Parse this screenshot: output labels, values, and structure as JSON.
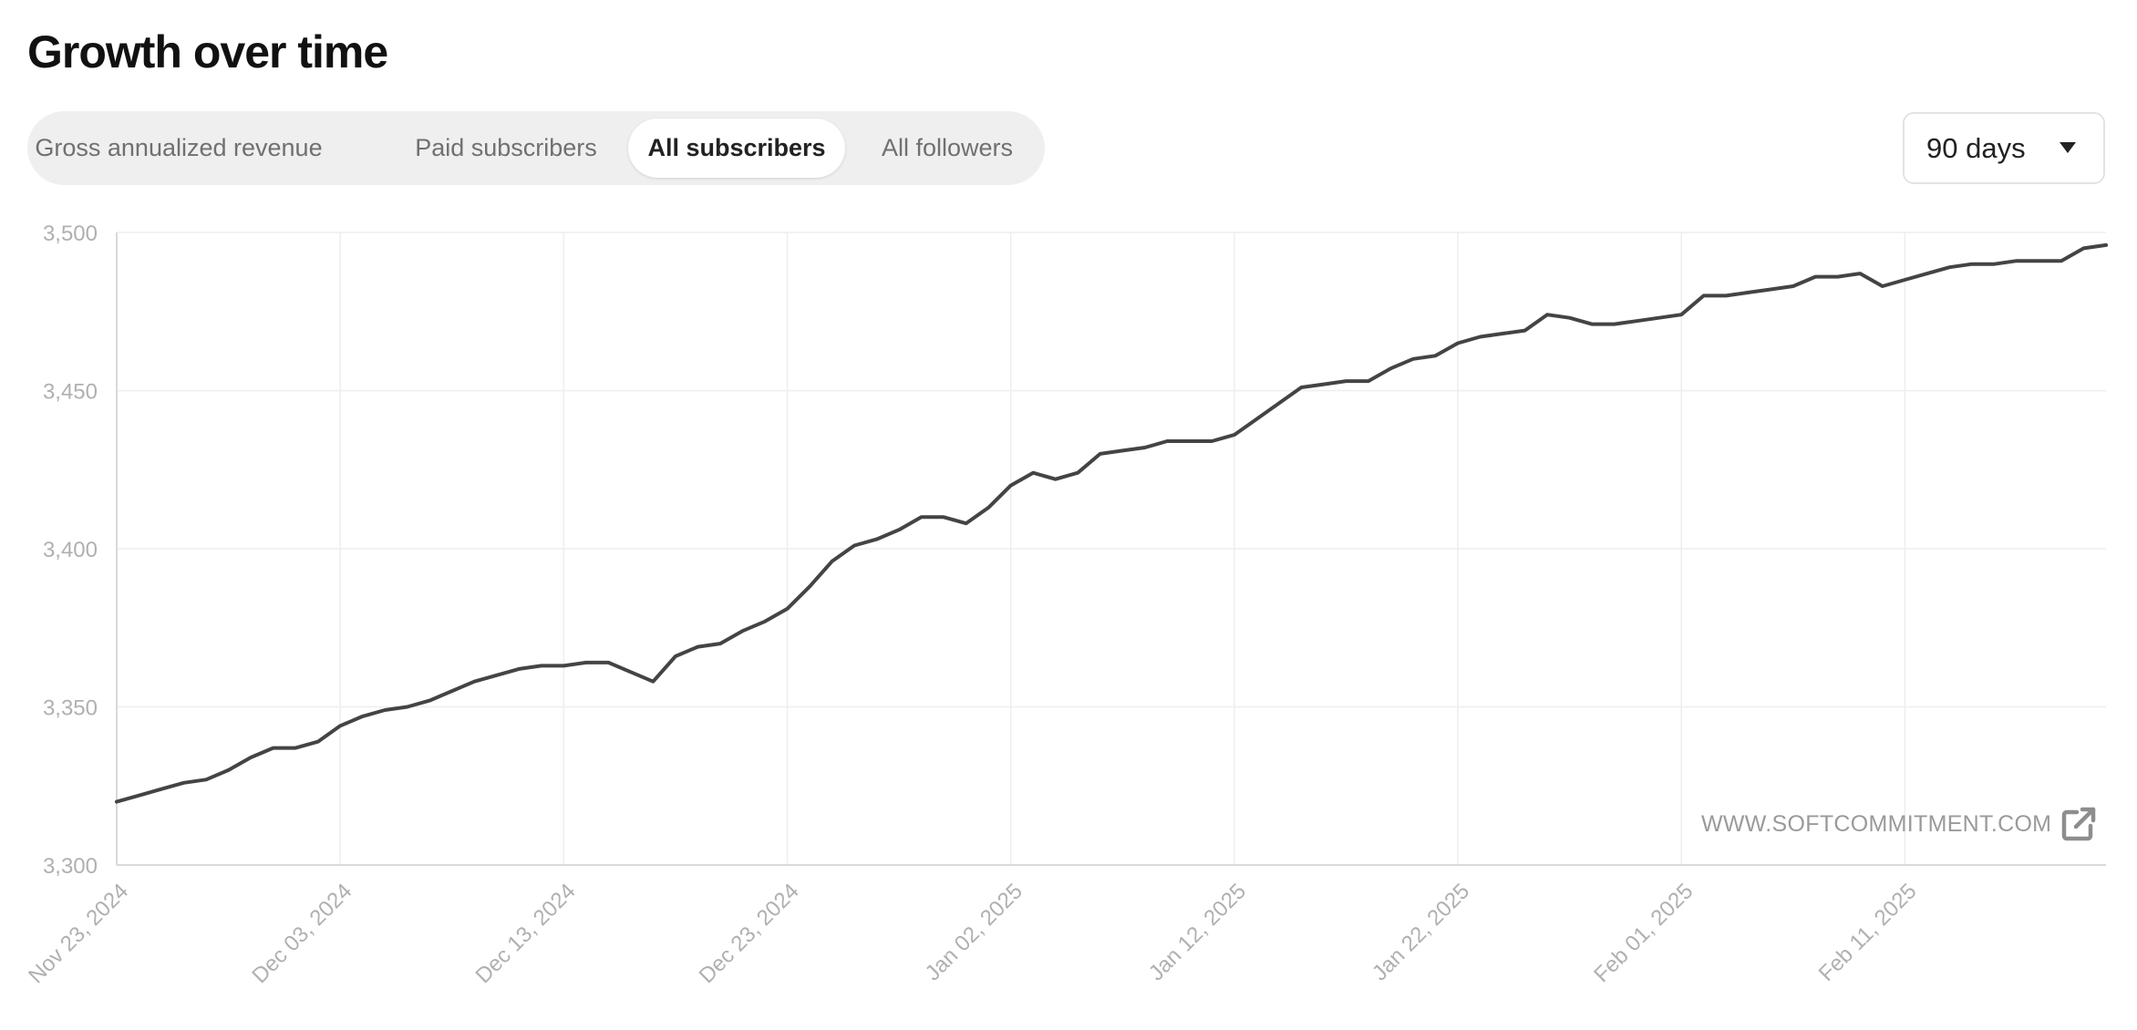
{
  "page": {
    "title": "Growth over time"
  },
  "tabs": [
    {
      "label": "Gross annualized revenue",
      "active": false
    },
    {
      "label": "Paid subscribers",
      "active": false
    },
    {
      "label": "All subscribers",
      "active": true
    },
    {
      "label": "All followers",
      "active": false
    }
  ],
  "range_select": {
    "value": "90 days"
  },
  "watermark": {
    "text": "WWW.SOFTCOMMITMENT.COM",
    "icon": "external-link-icon"
  },
  "colors": {
    "line": "#444444",
    "grid": "#eeeeee",
    "axis": "#d9d9d9",
    "tick_label": "#b0b0b0",
    "tabs_bg": "#efefef"
  },
  "chart_data": {
    "type": "line",
    "x_start": "2024-11-23",
    "x_end": "2025-02-20",
    "ylim": [
      3300,
      3500
    ],
    "yticks": [
      3300,
      3350,
      3400,
      3450,
      3500
    ],
    "ytick_labels": [
      "3,300",
      "3,350",
      "3,400",
      "3,450",
      "3,500"
    ],
    "xticks": [
      "2024-11-23",
      "2024-12-03",
      "2024-12-13",
      "2024-12-23",
      "2025-01-02",
      "2025-01-12",
      "2025-01-22",
      "2025-02-01",
      "2025-02-11"
    ],
    "xtick_labels": [
      "Nov 23, 2024",
      "Dec 03, 2024",
      "Dec 13, 2024",
      "Dec 23, 2024",
      "Jan 02, 2025",
      "Jan 12, 2025",
      "Jan 22, 2025",
      "Feb 01, 2025",
      "Feb 11, 2025"
    ],
    "grid": true,
    "series": [
      {
        "values": [
          3320,
          3322,
          3324,
          3326,
          3327,
          3330,
          3334,
          3337,
          3337,
          3339,
          3344,
          3347,
          3349,
          3350,
          3352,
          3355,
          3358,
          3360,
          3362,
          3363,
          3363,
          3364,
          3364,
          3361,
          3358,
          3366,
          3369,
          3370,
          3374,
          3377,
          3381,
          3388,
          3396,
          3401,
          3403,
          3406,
          3410,
          3410,
          3408,
          3413,
          3420,
          3424,
          3422,
          3424,
          3430,
          3431,
          3432,
          3434,
          3434,
          3434,
          3436,
          3441,
          3446,
          3451,
          3452,
          3453,
          3453,
          3457,
          3460,
          3461,
          3465,
          3467,
          3468,
          3469,
          3474,
          3473,
          3471,
          3471,
          3472,
          3473,
          3474,
          3480,
          3480,
          3481,
          3482,
          3483,
          3486,
          3486,
          3487,
          3483,
          3485,
          3487,
          3489,
          3490,
          3490,
          3491,
          3491,
          3491,
          3495,
          3496
        ]
      }
    ]
  }
}
